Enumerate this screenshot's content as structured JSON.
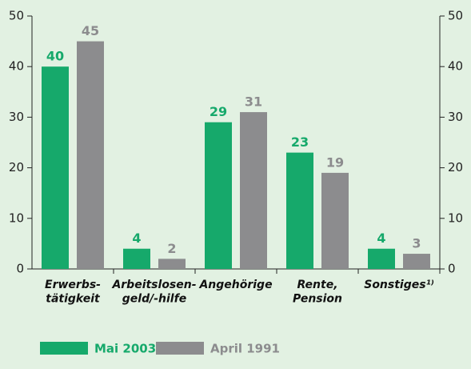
{
  "chart_data": {
    "type": "bar",
    "categories": [
      "Erwerbs-\ntätigkeit",
      "Arbeitslosen-\ngeld/-hilfe",
      "Angehörige",
      "Rente,\nPension",
      "Sonstiges¹⁾"
    ],
    "series": [
      {
        "name": "Mai 2003",
        "color": "#16a96b",
        "values": [
          40,
          4,
          29,
          23,
          4
        ]
      },
      {
        "name": "April 1991",
        "color": "#8c8c8e",
        "values": [
          45,
          2,
          31,
          19,
          3
        ]
      }
    ],
    "ylim": [
      0,
      50
    ],
    "yticks": [
      0,
      10,
      20,
      30,
      40,
      50
    ],
    "y2lim": [
      0,
      50
    ],
    "y2ticks": [
      0,
      10,
      20,
      30,
      40,
      50
    ],
    "grid": false,
    "legend": "bottom-left"
  }
}
